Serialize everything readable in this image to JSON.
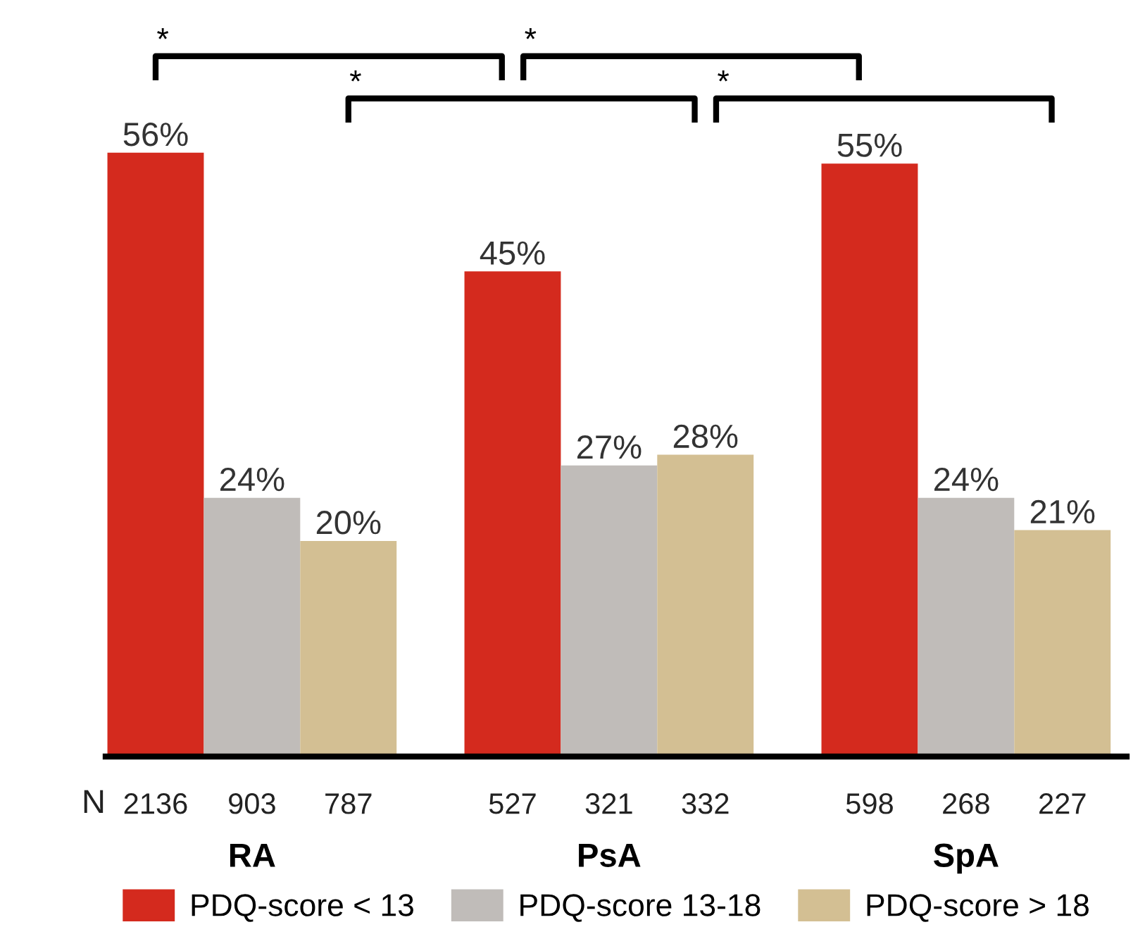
{
  "chart_data": {
    "type": "bar",
    "categories": [
      "RA",
      "PsA",
      "SpA"
    ],
    "series": [
      {
        "name": "PDQ-score < 13",
        "color": "#d42a1e",
        "values": [
          56,
          45,
          55
        ],
        "value_labels": [
          "56%",
          "45%",
          "55%"
        ]
      },
      {
        "name": "PDQ-score 13-18",
        "color": "#c0bcb9",
        "values": [
          24,
          27,
          24
        ],
        "value_labels": [
          "24%",
          "27%",
          "24%"
        ]
      },
      {
        "name": "PDQ-score > 18",
        "color": "#d3bf93",
        "values": [
          20,
          28,
          21
        ],
        "value_labels": [
          "20%",
          "28%",
          "21%"
        ]
      }
    ],
    "annotations": [
      "N",
      "2136",
      "903",
      "787",
      "527",
      "321",
      "332",
      "598",
      "268",
      "227",
      "*",
      "*",
      "*",
      "*"
    ],
    "legend": "bottom",
    "grid": false
  }
}
